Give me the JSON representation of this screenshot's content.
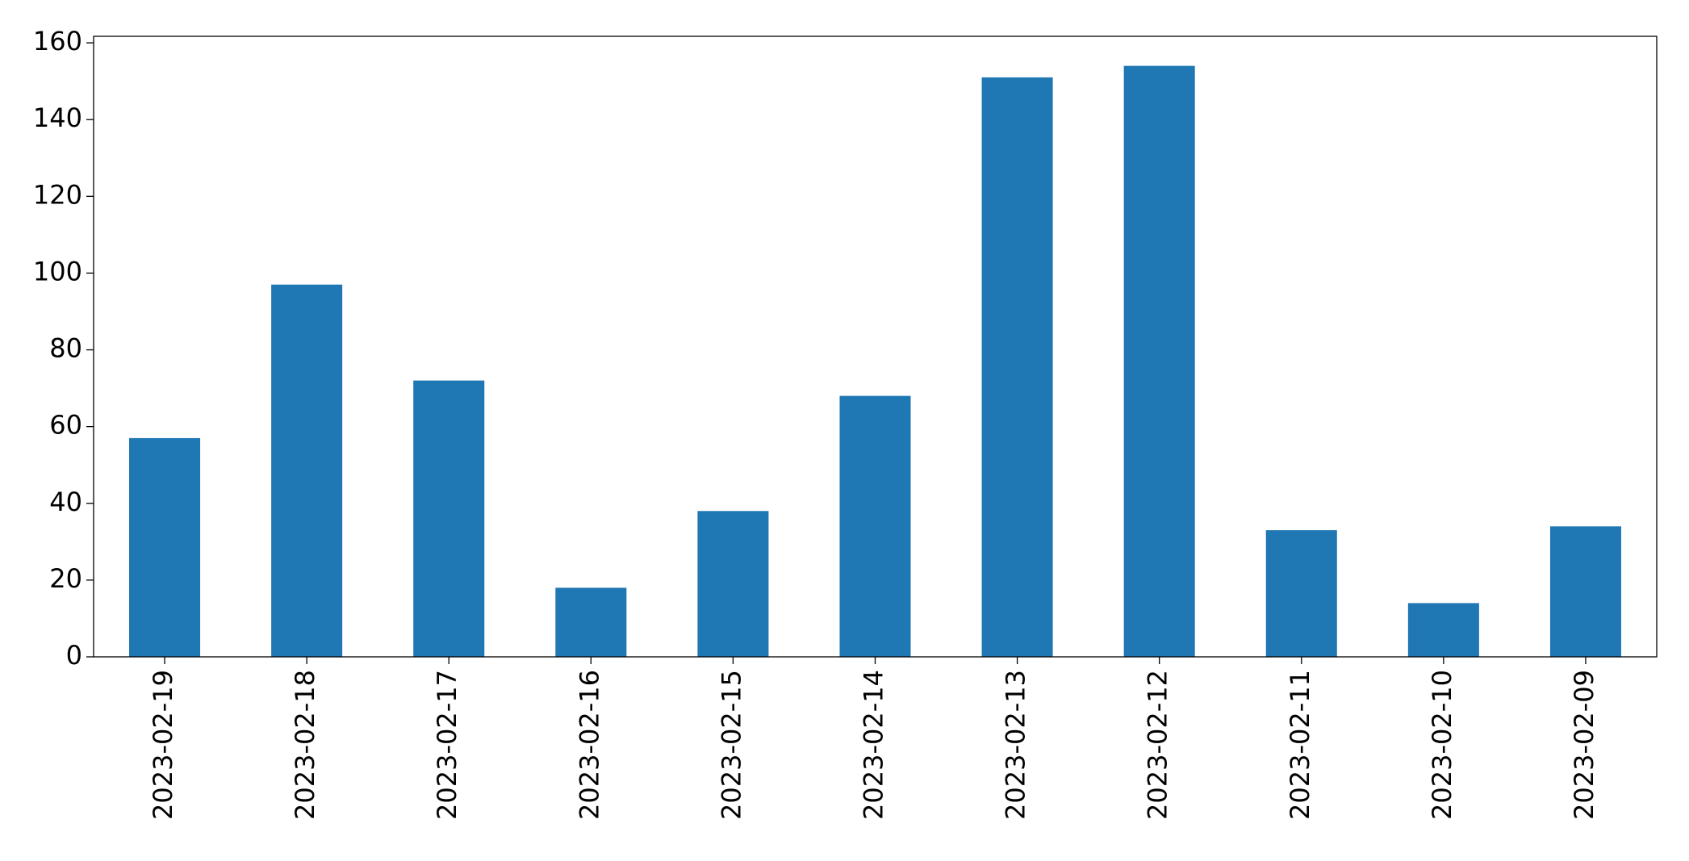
{
  "chart_data": {
    "type": "bar",
    "categories": [
      "2023-02-19",
      "2023-02-18",
      "2023-02-17",
      "2023-02-16",
      "2023-02-15",
      "2023-02-14",
      "2023-02-13",
      "2023-02-12",
      "2023-02-11",
      "2023-02-10",
      "2023-02-09"
    ],
    "values": [
      57,
      97,
      72,
      18,
      38,
      68,
      151,
      154,
      33,
      14,
      34
    ],
    "color": "#1f77b4",
    "ylim": [
      0,
      161.7
    ],
    "yticks": [
      0,
      20,
      40,
      60,
      80,
      100,
      120,
      140,
      160
    ],
    "grid": false
  }
}
